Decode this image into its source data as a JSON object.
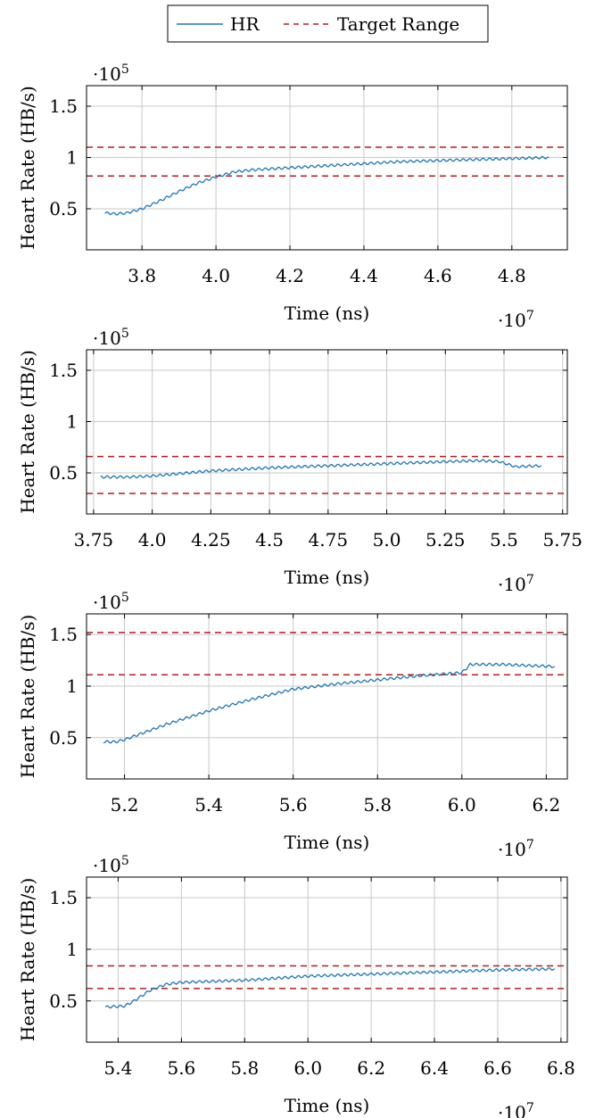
{
  "legend": {
    "hr_label": "HR",
    "target_label": "Target Range",
    "placement": "top-center"
  },
  "colors": {
    "hr_line": "#1f77b4",
    "target_line": "#b21f1f",
    "grid": "#c8c8c8",
    "axes": "#000000"
  },
  "chart_data": [
    {
      "type": "line",
      "xlabel": "Time (ns)",
      "ylabel": "Heart Rate (HB/s)",
      "x_exponent": "·10^7",
      "y_exponent": "·10^5",
      "xlim": [
        3.65,
        4.95
      ],
      "ylim": [
        0.1,
        1.7
      ],
      "xticks": [
        3.8,
        4.0,
        4.2,
        4.4,
        4.6,
        4.8
      ],
      "xtick_labels": [
        "3.8",
        "4.0",
        "4.2",
        "4.4",
        "4.6",
        "4.8"
      ],
      "yticks": [
        0.5,
        1.0,
        1.5
      ],
      "ytick_labels": [
        "0.5",
        "1",
        "1.5"
      ],
      "grid": true,
      "target_range": [
        0.82,
        1.1
      ],
      "series": [
        {
          "name": "HR",
          "x": [
            3.7,
            3.73,
            3.76,
            3.8,
            3.85,
            3.9,
            3.95,
            4.0,
            4.05,
            4.1,
            4.2,
            4.3,
            4.4,
            4.5,
            4.6,
            4.7,
            4.8,
            4.9
          ],
          "y": [
            0.46,
            0.45,
            0.46,
            0.5,
            0.58,
            0.67,
            0.75,
            0.81,
            0.86,
            0.88,
            0.9,
            0.92,
            0.94,
            0.96,
            0.97,
            0.98,
            0.99,
            1.0
          ]
        }
      ]
    },
    {
      "type": "line",
      "xlabel": "Time (ns)",
      "ylabel": "Heart Rate (HB/s)",
      "x_exponent": "·10^7",
      "y_exponent": "·10^5",
      "xlim": [
        3.72,
        5.77
      ],
      "ylim": [
        0.1,
        1.7
      ],
      "xticks": [
        3.75,
        4.0,
        4.25,
        4.5,
        4.75,
        5.0,
        5.25,
        5.5,
        5.75
      ],
      "xtick_labels": [
        "3.75",
        "4.0",
        "4.25",
        "4.5",
        "4.75",
        "5.0",
        "5.25",
        "5.5",
        "5.75"
      ],
      "yticks": [
        0.5,
        1.0,
        1.5
      ],
      "ytick_labels": [
        "0.5",
        "1",
        "1.5"
      ],
      "grid": true,
      "target_range": [
        0.3,
        0.66
      ],
      "series": [
        {
          "name": "HR",
          "x": [
            3.78,
            3.9,
            4.0,
            4.1,
            4.25,
            4.5,
            4.75,
            5.0,
            5.25,
            5.4,
            5.48,
            5.55,
            5.66
          ],
          "y": [
            0.46,
            0.46,
            0.47,
            0.49,
            0.52,
            0.55,
            0.57,
            0.59,
            0.61,
            0.62,
            0.61,
            0.56,
            0.57
          ]
        }
      ]
    },
    {
      "type": "line",
      "xlabel": "Time (ns)",
      "ylabel": "Heart Rate (HB/s)",
      "x_exponent": "·10^7",
      "y_exponent": "·10^5",
      "xlim": [
        5.11,
        6.25
      ],
      "ylim": [
        0.1,
        1.7
      ],
      "xticks": [
        5.2,
        5.4,
        5.6,
        5.8,
        6.0,
        6.2
      ],
      "xtick_labels": [
        "5.2",
        "5.4",
        "5.6",
        "5.8",
        "6.0",
        "6.2"
      ],
      "yticks": [
        0.5,
        1.0,
        1.5
      ],
      "ytick_labels": [
        "0.5",
        "1",
        "1.5"
      ],
      "grid": true,
      "target_range": [
        1.11,
        1.52
      ],
      "series": [
        {
          "name": "HR",
          "x": [
            5.15,
            5.18,
            5.2,
            5.3,
            5.4,
            5.5,
            5.6,
            5.7,
            5.8,
            5.9,
            6.0,
            6.02,
            6.05,
            6.1,
            6.15,
            6.22
          ],
          "y": [
            0.46,
            0.46,
            0.48,
            0.63,
            0.76,
            0.87,
            0.97,
            1.02,
            1.06,
            1.1,
            1.13,
            1.21,
            1.21,
            1.21,
            1.2,
            1.19
          ]
        }
      ]
    },
    {
      "type": "line",
      "xlabel": "Time (ns)",
      "ylabel": "Heart Rate (HB/s)",
      "x_exponent": "·10^7",
      "y_exponent": "·10^5",
      "xlim": [
        5.3,
        6.82
      ],
      "ylim": [
        0.1,
        1.7
      ],
      "xticks": [
        5.4,
        5.6,
        5.8,
        6.0,
        6.2,
        6.4,
        6.6,
        6.8
      ],
      "xtick_labels": [
        "5.4",
        "5.6",
        "5.8",
        "6.0",
        "6.2",
        "6.4",
        "6.6",
        "6.8"
      ],
      "yticks": [
        0.5,
        1.0,
        1.5
      ],
      "ytick_labels": [
        "0.5",
        "1",
        "1.5"
      ],
      "grid": true,
      "target_range": [
        0.62,
        0.84
      ],
      "series": [
        {
          "name": "HR",
          "x": [
            5.36,
            5.42,
            5.45,
            5.5,
            5.55,
            5.6,
            5.7,
            5.8,
            5.9,
            6.0,
            6.2,
            6.4,
            6.6,
            6.78
          ],
          "y": [
            0.44,
            0.45,
            0.5,
            0.6,
            0.66,
            0.68,
            0.69,
            0.7,
            0.72,
            0.74,
            0.76,
            0.78,
            0.8,
            0.81
          ]
        }
      ]
    }
  ]
}
